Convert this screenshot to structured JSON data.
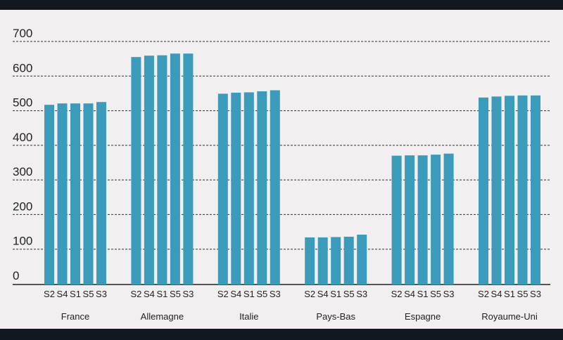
{
  "chart_data": {
    "type": "bar",
    "title": "",
    "xlabel": "",
    "ylabel": "",
    "ylim": [
      0,
      700
    ],
    "yticks": [
      0,
      100,
      200,
      300,
      400,
      500,
      600,
      700
    ],
    "grid": true,
    "bar_color": "#3a9bba",
    "categories": [
      "France",
      "Allemagne",
      "Italie",
      "Pays-Bas",
      "Espagne",
      "Royaume-Uni"
    ],
    "sub_labels": [
      "S2",
      "S4",
      "S1",
      "S5",
      "S3"
    ],
    "values": [
      [
        517,
        521,
        521,
        521,
        525
      ],
      [
        655,
        659,
        660,
        665,
        665
      ],
      [
        549,
        552,
        553,
        556,
        559
      ],
      [
        134,
        134,
        135,
        136,
        142
      ],
      [
        370,
        371,
        371,
        373,
        376
      ],
      [
        538,
        541,
        543,
        544,
        544
      ]
    ]
  }
}
